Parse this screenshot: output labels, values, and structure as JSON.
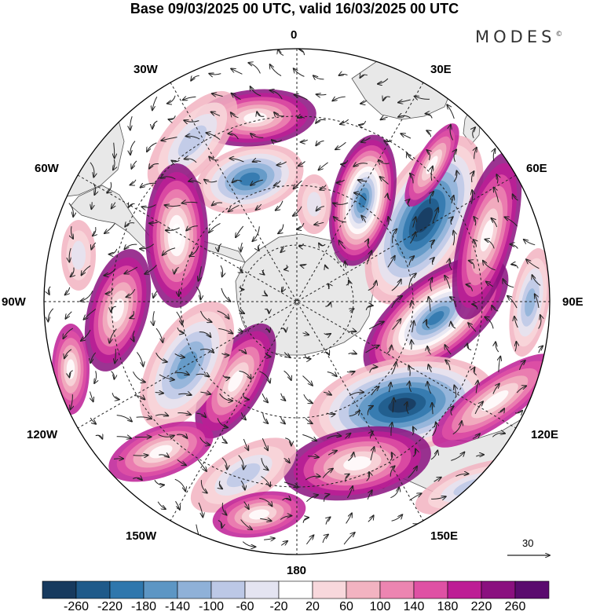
{
  "header": {
    "title": "Base 09/03/2025 00 UTC, valid 16/03/2025 00 UTC",
    "brand": "MODES",
    "brand_mark": "©"
  },
  "map": {
    "projection": "south-polar-stereographic",
    "longitude_labels": {
      "lon_0": "0",
      "lon_30e": "30E",
      "lon_60e": "60E",
      "lon_90e": "90E",
      "lon_120e": "120E",
      "lon_150e": "150E",
      "lon_180": "180",
      "lon_150w": "150W",
      "lon_120w": "120W",
      "lon_90w": "90W",
      "lon_60w": "60W",
      "lon_30w": "30W"
    },
    "reference_vector": {
      "label": "30"
    },
    "land_color": "#e8e8e8",
    "coast_color": "#555555"
  },
  "colorbar": {
    "labels": [
      "-260",
      "-220",
      "-180",
      "-140",
      "-100",
      "-60",
      "-20",
      "20",
      "60",
      "100",
      "140",
      "180",
      "220",
      "260"
    ],
    "colors": [
      "#173a5e",
      "#1f5a8a",
      "#2f77ad",
      "#5d96c4",
      "#8fb1d8",
      "#bcc8e6",
      "#e4e4f1",
      "#ffffff",
      "#f8d8dc",
      "#f2b3c1",
      "#ec85b1",
      "#df51a4",
      "#bd1d95",
      "#8a107f",
      "#5a0b6e"
    ]
  }
}
